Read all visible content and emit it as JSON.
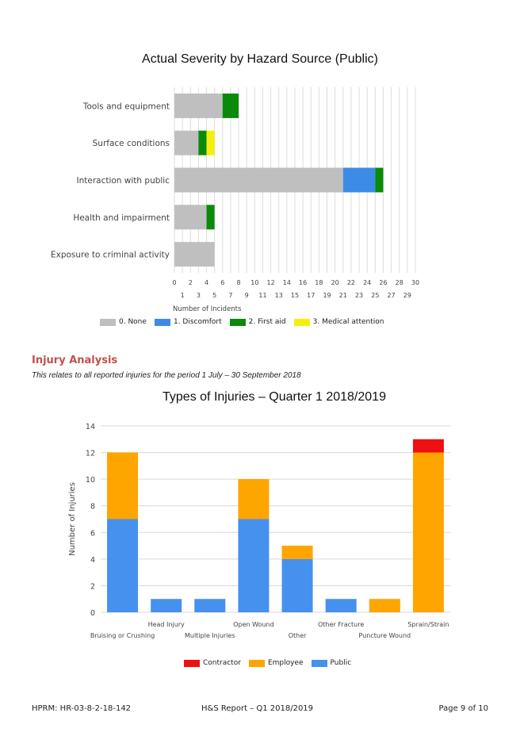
{
  "chart_data": [
    {
      "type": "bar",
      "orientation": "horizontal",
      "stacked": true,
      "title": "Actual Severity by Hazard Source (Public)",
      "xlabel": "Number of Incidents",
      "xlim": [
        0,
        30
      ],
      "x_ticks_major": [
        "0",
        "2",
        "4",
        "6",
        "8",
        "10",
        "12",
        "14",
        "16",
        "18",
        "20",
        "22",
        "24",
        "26",
        "28",
        "30"
      ],
      "x_ticks_minor": [
        "1",
        "3",
        "5",
        "7",
        "9",
        "11",
        "13",
        "15",
        "17",
        "19",
        "21",
        "23",
        "25",
        "27",
        "29"
      ],
      "grid": true,
      "legend": "bottom",
      "categories": [
        "Tools and equipment",
        "Surface conditions",
        "Interaction with public",
        "Health and impairment",
        "Exposure to criminal activity"
      ],
      "series": [
        {
          "name": "0. None",
          "color": "#c0bfc0",
          "values": [
            6,
            3,
            21,
            4,
            5
          ]
        },
        {
          "name": "1. Discomfort",
          "color": "#3c8ce6",
          "values": [
            0,
            0,
            4,
            0,
            0
          ]
        },
        {
          "name": "2. First aid",
          "color": "#0a8a0a",
          "values": [
            2,
            1,
            1,
            1,
            0
          ]
        },
        {
          "name": "3. Medical attention",
          "color": "#f5ef10",
          "values": [
            0,
            1,
            0,
            0,
            0
          ]
        }
      ]
    },
    {
      "type": "bar",
      "stacked": true,
      "title": "Types of Injuries – Quarter 1 2018/2019",
      "xlabel": "",
      "ylabel": "Number of Injuries",
      "ylim": [
        0,
        14
      ],
      "y_ticks": [
        "0",
        "2",
        "4",
        "6",
        "8",
        "10",
        "12",
        "14"
      ],
      "grid": true,
      "legend": "bottom",
      "categories": [
        "Bruising or Crushing",
        "Head Injury",
        "Multiple Injuries",
        "Open Wound",
        "Other",
        "Other Fracture",
        "Puncture Wound",
        "Sprain/Strain"
      ],
      "series": [
        {
          "name": "Public",
          "color": "#4690ee",
          "values": [
            7,
            1,
            1,
            7,
            4,
            1,
            0,
            0
          ]
        },
        {
          "name": "Employee",
          "color": "#fea500",
          "values": [
            5,
            0,
            0,
            3,
            1,
            0,
            1,
            12
          ]
        },
        {
          "name": "Contractor",
          "color": "#ee1111",
          "values": [
            0,
            0,
            0,
            0,
            0,
            0,
            0,
            1
          ]
        }
      ],
      "legend_order": [
        "Contractor",
        "Employee",
        "Public"
      ]
    }
  ],
  "section": {
    "heading": "Injury Analysis",
    "subtitle": "This relates to all reported injuries for the period 1 July – 30 September 2018"
  },
  "footer": {
    "left": "HPRM: HR-03-8-2-18-142",
    "center": "H&S Report – Q1 2018/2019",
    "right": "Page 9 of 10"
  }
}
